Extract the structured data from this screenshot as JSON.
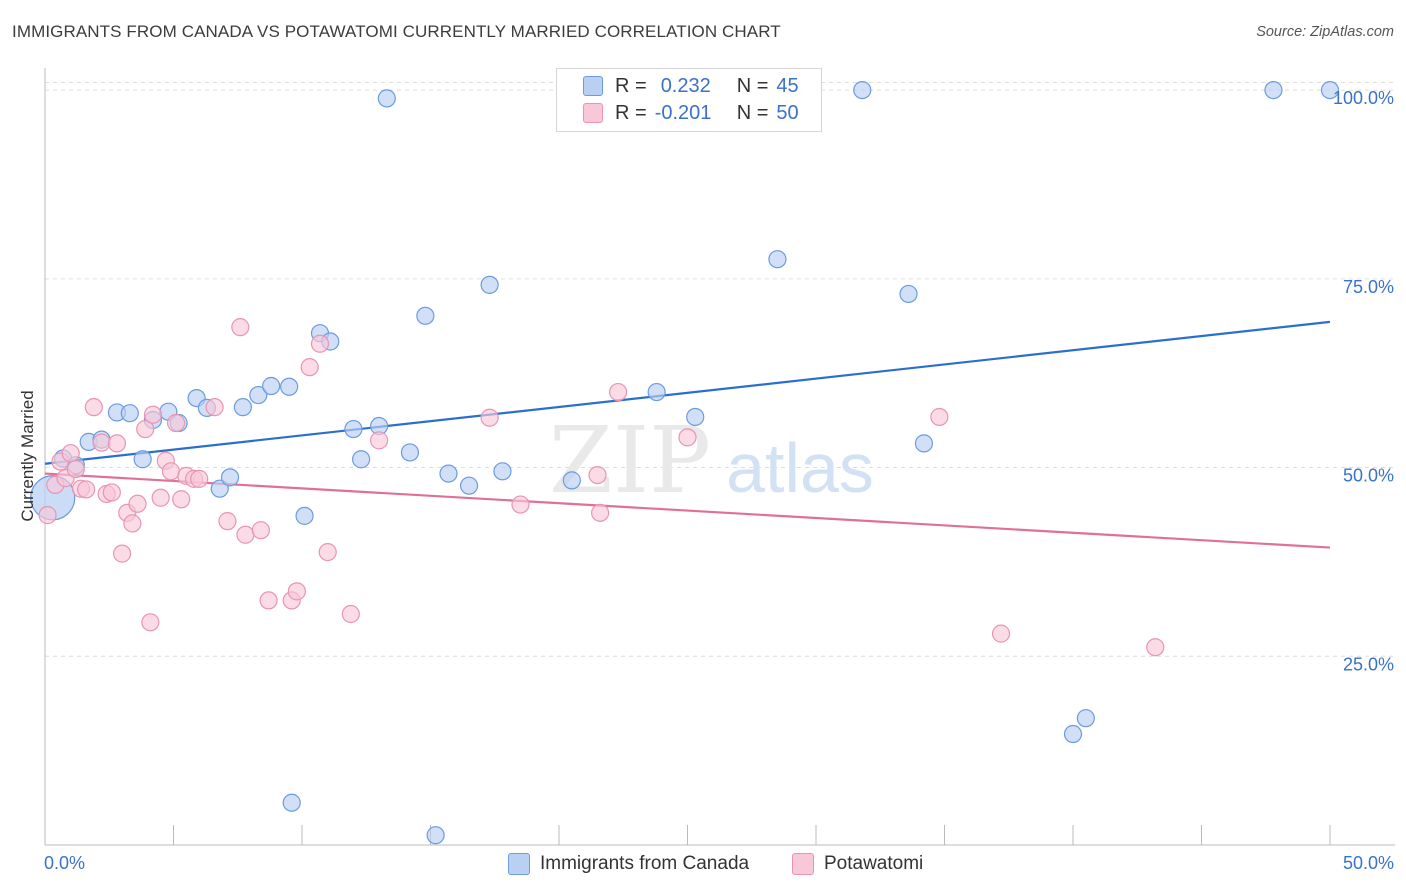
{
  "title": "IMMIGRANTS FROM CANADA VS POTAWATOMI CURRENTLY MARRIED CORRELATION CHART",
  "source": "Source: ZipAtlas.com",
  "legend": {
    "series1": {
      "r_label": "R =",
      "r_value": "0.232",
      "n_label": "N =",
      "n_value": "45"
    },
    "series2": {
      "r_label": "R =",
      "r_value": "-0.201",
      "n_label": "N =",
      "n_value": "50"
    }
  },
  "bottom_legend": {
    "series1_label": "Immigrants from Canada",
    "series2_label": "Potawatomi"
  },
  "watermark": {
    "zip": "ZIP",
    "atlas": "atlas"
  },
  "colors": {
    "series1_fill": "#b9d0f3",
    "series1_stroke": "#6c9be0",
    "series1_line": "#2b6fce",
    "series2_fill": "#f8c8d8",
    "series2_stroke": "#e895b2",
    "series2_line": "#e0709a",
    "axis_text": "#3a72c9",
    "grid": "#dddddd"
  },
  "chart_data": {
    "type": "scatter",
    "title": "IMMIGRANTS FROM CANADA VS POTAWATOMI CURRENTLY MARRIED CORRELATION CHART",
    "xlabel": "",
    "ylabel": "Currently Married",
    "xlim": [
      0,
      50
    ],
    "ylim": [
      0,
      102
    ],
    "x_ticks": [
      0,
      5,
      10,
      15,
      20,
      25,
      30,
      35,
      40,
      45,
      50
    ],
    "x_tick_labels": {
      "first": "0.0%",
      "last": "50.0%"
    },
    "y_ticks": [
      25,
      50,
      75,
      100
    ],
    "y_tick_labels": [
      "25.0%",
      "50.0%",
      "75.0%",
      "100.0%"
    ],
    "grid": true,
    "legend_position": "top-center",
    "series": [
      {
        "name": "Immigrants from Canada",
        "r": 0.232,
        "n": 45,
        "trend": {
          "x": [
            0,
            50
          ],
          "y": [
            50.5,
            69.3
          ]
        },
        "points": [
          [
            0.3,
            46
          ],
          [
            0.7,
            51.2
          ],
          [
            1.2,
            50.3
          ],
          [
            1.7,
            53.4
          ],
          [
            2.2,
            53.7
          ],
          [
            2.8,
            57.3
          ],
          [
            3.3,
            57.2
          ],
          [
            3.8,
            51.1
          ],
          [
            4.2,
            56.3
          ],
          [
            4.8,
            57.4
          ],
          [
            5.2,
            55.9
          ],
          [
            5.9,
            59.2
          ],
          [
            6.3,
            57.9
          ],
          [
            6.8,
            47.2
          ],
          [
            7.2,
            48.7
          ],
          [
            7.7,
            58
          ],
          [
            8.3,
            59.6
          ],
          [
            8.8,
            60.8
          ],
          [
            9.5,
            60.7
          ],
          [
            10.1,
            43.6
          ],
          [
            10.7,
            67.8
          ],
          [
            11.1,
            66.7
          ],
          [
            12.0,
            55.1
          ],
          [
            12.3,
            51.1
          ],
          [
            13.0,
            55.5
          ],
          [
            13.3,
            98.9
          ],
          [
            14.2,
            52
          ],
          [
            14.8,
            70.1
          ],
          [
            15.7,
            49.2
          ],
          [
            16.5,
            47.6
          ],
          [
            17.3,
            74.2
          ],
          [
            17.8,
            49.5
          ],
          [
            20.5,
            48.3
          ],
          [
            23.8,
            60
          ],
          [
            25.3,
            56.7
          ],
          [
            28.5,
            77.6
          ],
          [
            31.8,
            100
          ],
          [
            33.6,
            73
          ],
          [
            34.2,
            53.2
          ],
          [
            40.0,
            14.7
          ],
          [
            40.5,
            16.8
          ],
          [
            47.8,
            100
          ],
          [
            50.0,
            100
          ],
          [
            9.6,
            5.6
          ],
          [
            15.2,
            1.3
          ]
        ]
      },
      {
        "name": "Potawatomi",
        "r": -0.201,
        "n": 50,
        "trend": {
          "x": [
            0,
            50
          ],
          "y": [
            49.2,
            39.4
          ]
        },
        "points": [
          [
            0.1,
            43.7
          ],
          [
            0.4,
            47.7
          ],
          [
            0.6,
            50.8
          ],
          [
            0.8,
            48.6
          ],
          [
            1.0,
            51.9
          ],
          [
            1.2,
            49.8
          ],
          [
            1.4,
            47.2
          ],
          [
            1.6,
            47.1
          ],
          [
            1.9,
            58
          ],
          [
            2.2,
            53.3
          ],
          [
            2.4,
            46.5
          ],
          [
            2.6,
            46.7
          ],
          [
            2.8,
            53.2
          ],
          [
            3.0,
            38.6
          ],
          [
            3.2,
            44.0
          ],
          [
            3.4,
            42.6
          ],
          [
            3.6,
            45.2
          ],
          [
            3.9,
            55.1
          ],
          [
            4.1,
            29.5
          ],
          [
            4.2,
            57
          ],
          [
            4.5,
            46
          ],
          [
            4.7,
            50.9
          ],
          [
            4.9,
            49.5
          ],
          [
            5.1,
            55.9
          ],
          [
            5.3,
            45.8
          ],
          [
            5.5,
            48.9
          ],
          [
            5.8,
            48.5
          ],
          [
            6.0,
            48.5
          ],
          [
            6.6,
            58
          ],
          [
            7.1,
            42.9
          ],
          [
            7.6,
            68.6
          ],
          [
            7.8,
            41.1
          ],
          [
            8.4,
            41.7
          ],
          [
            8.7,
            32.4
          ],
          [
            9.6,
            32.4
          ],
          [
            9.8,
            33.6
          ],
          [
            10.3,
            63.3
          ],
          [
            10.7,
            66.4
          ],
          [
            11.0,
            38.8
          ],
          [
            11.9,
            30.6
          ],
          [
            13.0,
            53.6
          ],
          [
            17.3,
            56.6
          ],
          [
            18.5,
            45.1
          ],
          [
            21.5,
            49
          ],
          [
            21.6,
            44
          ],
          [
            22.3,
            60
          ],
          [
            25.0,
            54
          ],
          [
            34.8,
            56.7
          ],
          [
            37.2,
            28
          ],
          [
            43.2,
            26.2
          ]
        ]
      }
    ]
  }
}
